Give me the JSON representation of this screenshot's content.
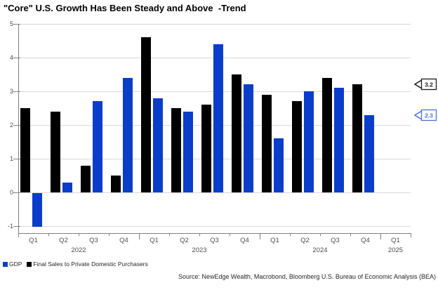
{
  "title": "\"Core\" U.S. Growth Has Been Steady and Above  -Trend",
  "source": "Source: NewEdge Wealth, Macrobond, Bloomberg U.S. Bureau of Economic Analysis (BEA)",
  "legend": [
    {
      "label": "GDP",
      "color": "#0b3dcb"
    },
    {
      "label": "Final Sales to Private Domestic Purchasers",
      "color": "#000000"
    }
  ],
  "callouts": [
    {
      "label": "3.2",
      "value": 3.2,
      "color": "#1a1a1a",
      "series": "Final Sales to Private Domestic Purchasers"
    },
    {
      "label": "2.3",
      "value": 2.3,
      "color": "#4a6fd8",
      "series": "GDP"
    }
  ],
  "colors": {
    "gdp_blue": "#0b3dcb",
    "final_sales_black": "#000000",
    "gridline": "#d9d9d9",
    "axis": "#808080",
    "tick_text": "#4d4d4d"
  },
  "chart_data": {
    "type": "bar",
    "categories": [
      "Q1",
      "Q2",
      "Q3",
      "Q4",
      "Q1",
      "Q2",
      "Q3",
      "Q4",
      "Q1",
      "Q2",
      "Q3",
      "Q4",
      "Q1"
    ],
    "year_groups": [
      {
        "label": "2022",
        "start": 0,
        "count": 4
      },
      {
        "label": "2023",
        "start": 4,
        "count": 4
      },
      {
        "label": "2024",
        "start": 8,
        "count": 4
      },
      {
        "label": "2025",
        "start": 12,
        "count": 1
      }
    ],
    "series": [
      {
        "name": "Final Sales to Private Domestic Purchasers",
        "color": "#000000",
        "values": [
          2.5,
          2.4,
          0.8,
          0.5,
          4.6,
          2.5,
          2.6,
          3.5,
          2.9,
          2.7,
          3.4,
          3.2,
          null
        ]
      },
      {
        "name": "GDP",
        "color": "#0b3dcb",
        "values": [
          -1.0,
          0.3,
          2.7,
          3.4,
          2.8,
          2.4,
          4.4,
          3.2,
          1.6,
          3.0,
          3.1,
          2.3,
          null
        ]
      }
    ],
    "title": "\"Core\" U.S. Growth Has Been Steady and Above  -Trend",
    "xlabel": "",
    "ylabel": "",
    "ylim": [
      -1.2,
      5
    ],
    "yticks": [
      5,
      4,
      3,
      2,
      1,
      0,
      -1
    ],
    "grid": true,
    "legend_position": "bottom-left"
  }
}
